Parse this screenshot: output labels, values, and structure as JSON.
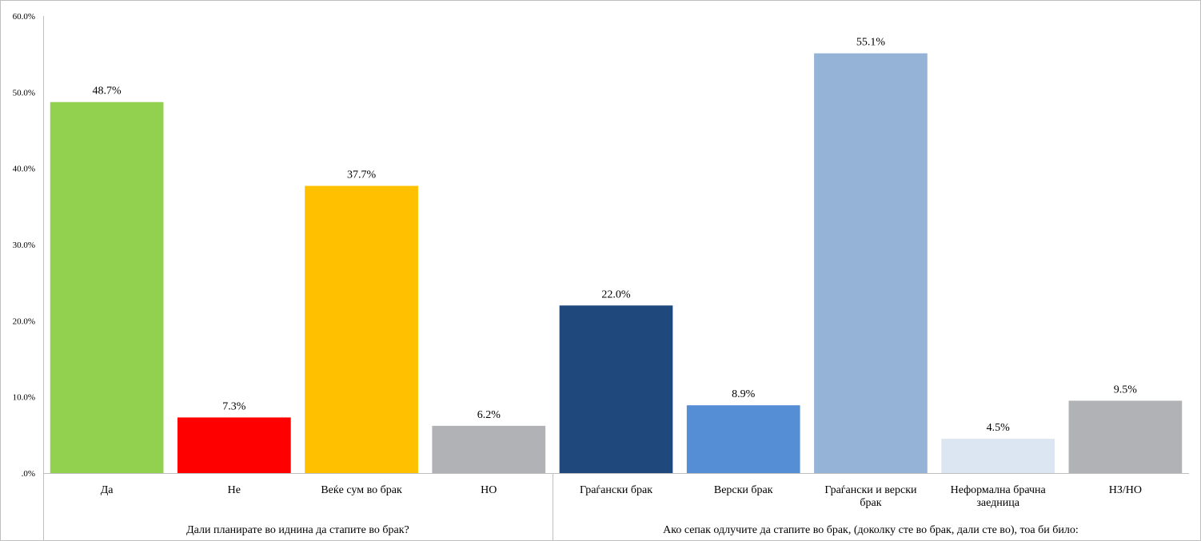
{
  "chart_data": {
    "type": "bar",
    "title": "",
    "xlabel": "",
    "ylabel": "",
    "ylim": [
      0,
      60
    ],
    "y_ticks": [
      ".0%",
      "10.0%",
      "20.0%",
      "30.0%",
      "40.0%",
      "50.0%",
      "60.0%"
    ],
    "y_tick_values": [
      0,
      10,
      20,
      30,
      40,
      50,
      60
    ],
    "grid": false,
    "legend": "none",
    "categories": [
      {
        "label": "Да",
        "value": 48.7,
        "value_label": "48.7%",
        "color": "#92d050"
      },
      {
        "label": "Не",
        "value": 7.3,
        "value_label": "7.3%",
        "color": "#ff0000"
      },
      {
        "label": "Веќе сум во брак",
        "value": 37.7,
        "value_label": "37.7%",
        "color": "#ffc000"
      },
      {
        "label": "НО",
        "value": 6.2,
        "value_label": "6.2%",
        "color": "#b1b2b6"
      },
      {
        "label": "Граѓански брак",
        "value": 22.0,
        "value_label": "22.0%",
        "color": "#1f497d"
      },
      {
        "label": "Верски брак",
        "value": 8.9,
        "value_label": "8.9%",
        "color": "#558ed5"
      },
      {
        "label": "Граѓански и верски брак",
        "label_lines": [
          "Граѓански и верски",
          "брак"
        ],
        "value": 55.1,
        "value_label": "55.1%",
        "color": "#95b3d7"
      },
      {
        "label": "Неформална брачна заедница",
        "label_lines": [
          "Неформална брачна",
          "заедница"
        ],
        "value": 4.5,
        "value_label": "4.5%",
        "color": "#dce6f2"
      },
      {
        "label": "НЗ/НО",
        "value": 9.5,
        "value_label": "9.5%",
        "color": "#b1b2b6"
      }
    ],
    "groups": [
      {
        "label": "Дали планирате во иднина да стапите во брак?",
        "count": 4
      },
      {
        "label": "Ако сепак одлучите да стапите во брак,  (доколку сте во брак, дали сте во), тоа би било:",
        "count": 5
      }
    ]
  }
}
